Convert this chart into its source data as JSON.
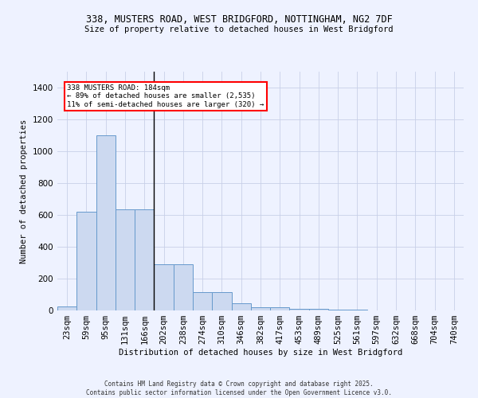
{
  "title1": "338, MUSTERS ROAD, WEST BRIDGFORD, NOTTINGHAM, NG2 7DF",
  "title2": "Size of property relative to detached houses in West Bridgford",
  "xlabel": "Distribution of detached houses by size in West Bridgford",
  "ylabel": "Number of detached properties",
  "bar_color": "#ccd9f0",
  "bar_edge_color": "#6699cc",
  "background_color": "#eef2ff",
  "grid_color": "#c8d0e8",
  "categories": [
    "23sqm",
    "59sqm",
    "95sqm",
    "131sqm",
    "166sqm",
    "202sqm",
    "238sqm",
    "274sqm",
    "310sqm",
    "346sqm",
    "382sqm",
    "417sqm",
    "453sqm",
    "489sqm",
    "525sqm",
    "561sqm",
    "597sqm",
    "632sqm",
    "668sqm",
    "704sqm",
    "740sqm"
  ],
  "values": [
    25,
    620,
    1100,
    635,
    635,
    290,
    290,
    115,
    115,
    45,
    20,
    20,
    10,
    10,
    5,
    5,
    0,
    0,
    0,
    0,
    0
  ],
  "property_line_x": 4.5,
  "property_label": "338 MUSTERS ROAD: 184sqm",
  "annotation_line1": "← 89% of detached houses are smaller (2,535)",
  "annotation_line2": "11% of semi-detached houses are larger (320) →",
  "ylim": [
    0,
    1500
  ],
  "yticks": [
    0,
    200,
    400,
    600,
    800,
    1000,
    1200,
    1400
  ],
  "footer1": "Contains HM Land Registry data © Crown copyright and database right 2025.",
  "footer2": "Contains public sector information licensed under the Open Government Licence v3.0."
}
